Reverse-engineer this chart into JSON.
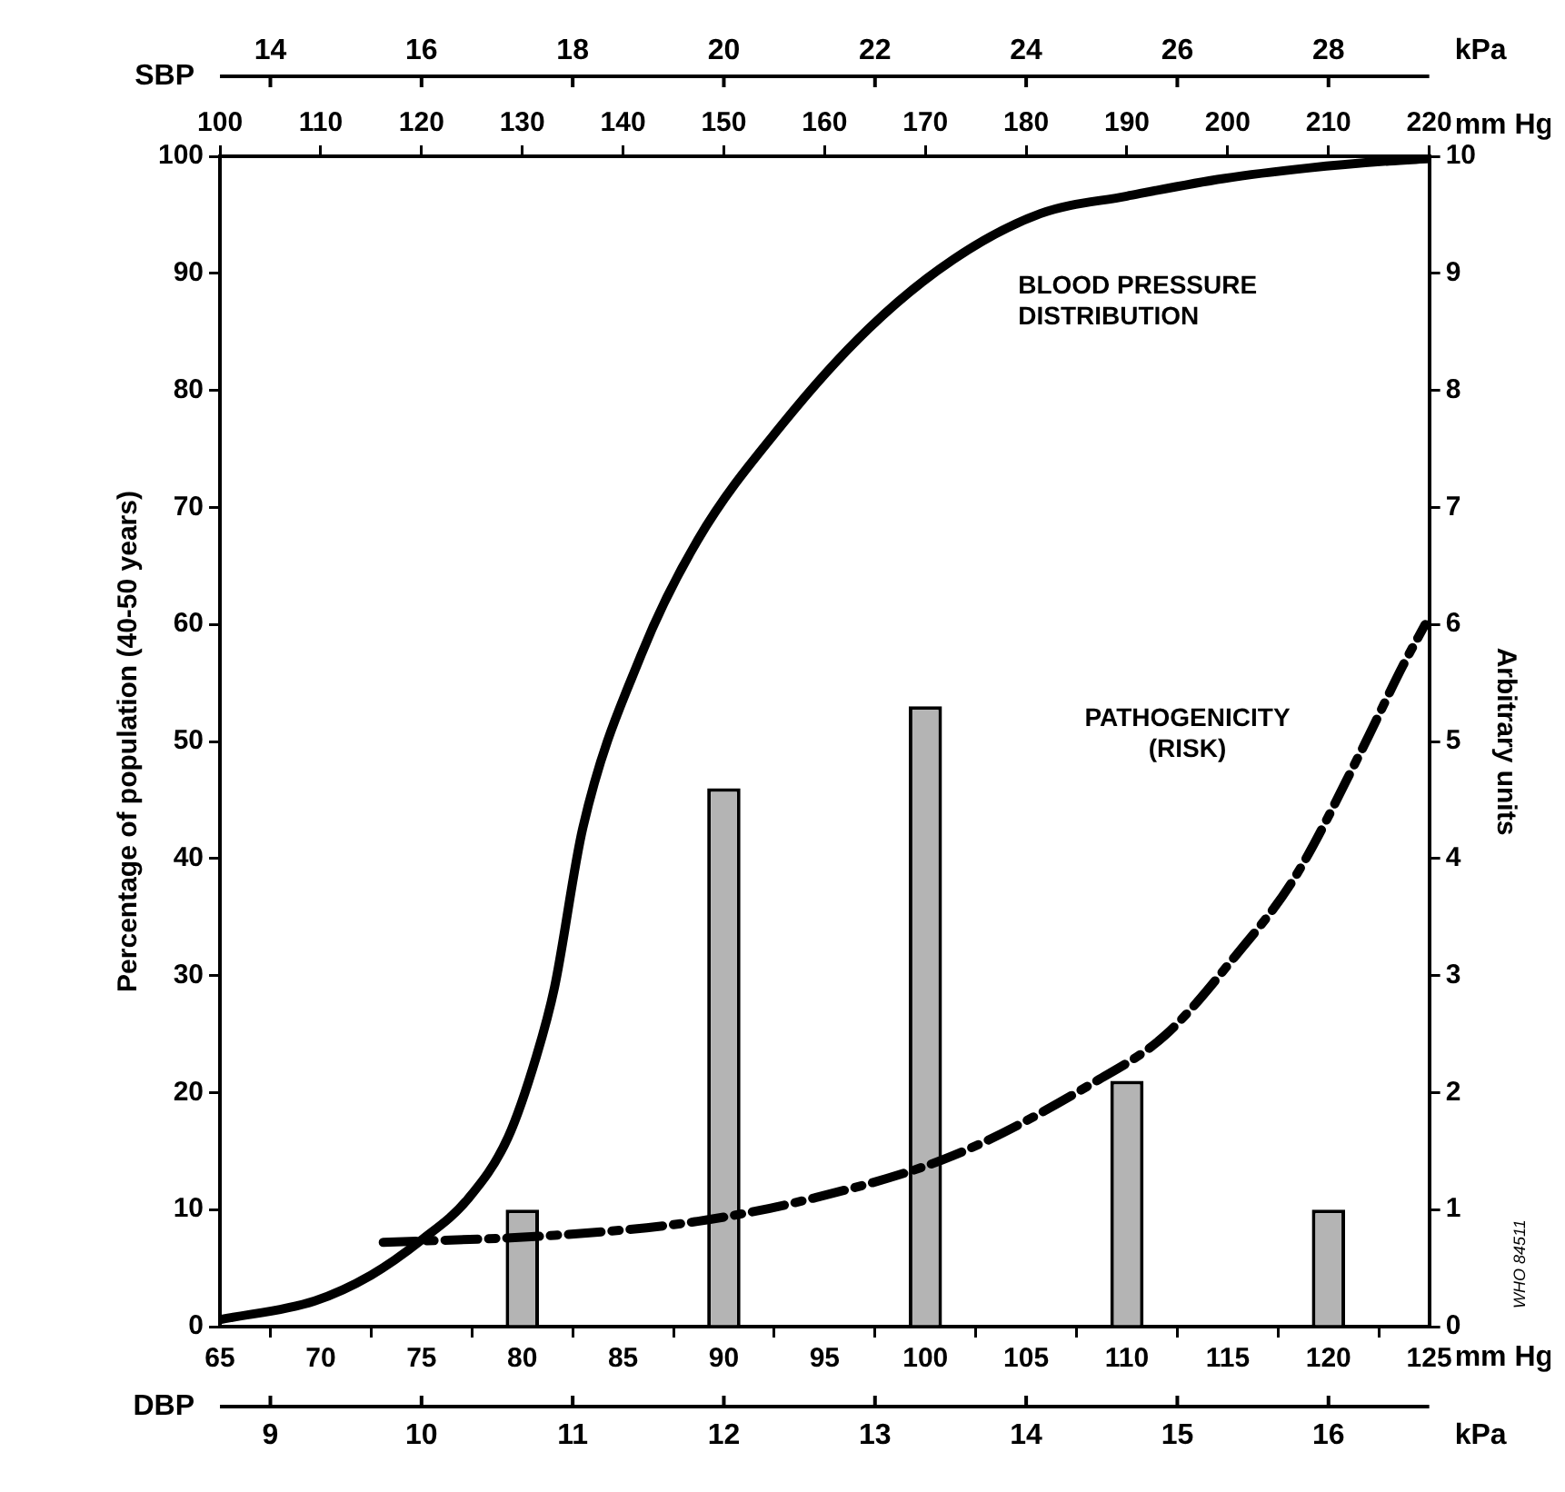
{
  "chart_data": {
    "type": "line",
    "ylabel": "Percentage of population (40-50 years)",
    "y2label": "Arbitrary units",
    "annotations": [
      "SBP",
      "14",
      "16",
      "18",
      "20",
      "22",
      "24",
      "26",
      "28",
      "kPa",
      "mm Hg",
      "mm Hg",
      "DBP",
      "9",
      "10",
      "11",
      "12",
      "13",
      "14",
      "15",
      "16",
      "kPa",
      "WHO 84511"
    ],
    "xlim": [
      65,
      125
    ],
    "xticks": [
      65,
      70,
      75,
      80,
      85,
      90,
      95,
      100,
      105,
      110,
      115,
      120,
      125
    ],
    "x2lim": [
      100,
      220
    ],
    "x2ticks": [
      100,
      110,
      120,
      130,
      140,
      150,
      160,
      170,
      180,
      190,
      200,
      210,
      220
    ],
    "ylim": [
      0,
      100
    ],
    "yticks": [
      0,
      10,
      20,
      30,
      40,
      50,
      60,
      70,
      80,
      90,
      100
    ],
    "y2lim": [
      0,
      10
    ],
    "y2ticks": [
      0,
      1,
      2,
      3,
      4,
      5,
      6,
      7,
      8,
      9,
      10
    ],
    "grid": false,
    "legend": false,
    "marker": "none",
    "series": [
      {
        "type": "bar",
        "x": [
          80,
          90,
          100,
          110,
          120
        ],
        "values": [
          10,
          46,
          53,
          21,
          10
        ],
        "color": "#b4b4b4"
      },
      {
        "name": "BLOOD PRESSURE DISTRIBUTION",
        "x": [
          65,
          69.7,
          72.5,
          75,
          77.3,
          79.3,
          80.7,
          81.6,
          83,
          85.9,
          88.7,
          92.9,
          97.2,
          101.4,
          105.7,
          110,
          114.8,
          119,
          123,
          125
        ],
        "values": [
          0.6,
          2.2,
          4.4,
          7.4,
          10.9,
          16.2,
          23.1,
          29,
          42.6,
          57.4,
          67.2,
          77.1,
          85.3,
          91.2,
          95.1,
          96.6,
          98.1,
          99,
          99.6,
          99.8
        ],
        "color": "#000000",
        "line_style": "solid"
      },
      {
        "name": "PATHOGENICITY (RISK)",
        "axis": "y2",
        "x": [
          73.1,
          81.6,
          88.7,
          94.5,
          101.5,
          108.4,
          111.9,
          115.3,
          118.3,
          121.6,
          123.7,
          124.8
        ],
        "values": [
          0.72,
          0.78,
          0.9,
          1.1,
          1.47,
          2.09,
          2.49,
          3.15,
          3.83,
          4.91,
          5.65,
          6.0
        ],
        "color": "#000000",
        "line_style": "dashed"
      }
    ]
  }
}
